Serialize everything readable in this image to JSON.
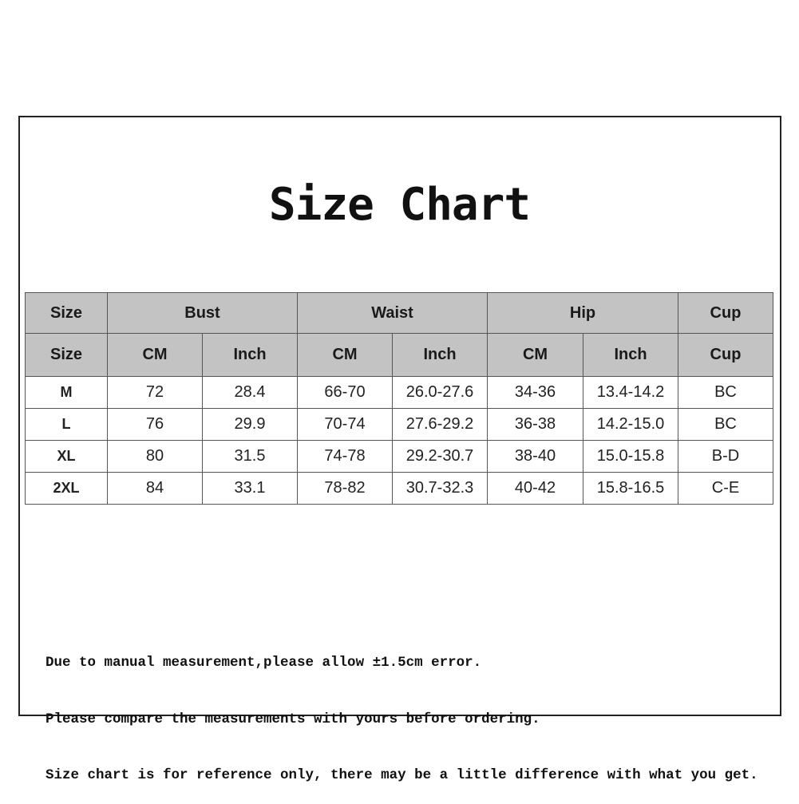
{
  "title": "Size Chart",
  "table": {
    "group_headers": [
      "Size",
      "Bust",
      "Waist",
      "Hip",
      "Cup"
    ],
    "sub_headers": [
      "Size",
      "CM",
      "Inch",
      "CM",
      "Inch",
      "CM",
      "Inch",
      "Cup"
    ],
    "rows": [
      [
        "M",
        "72",
        "28.4",
        "66-70",
        "26.0-27.6",
        "34-36",
        "13.4-14.2",
        "BC"
      ],
      [
        "L",
        "76",
        "29.9",
        "70-74",
        "27.6-29.2",
        "36-38",
        "14.2-15.0",
        "BC"
      ],
      [
        "XL",
        "80",
        "31.5",
        "74-78",
        "29.2-30.7",
        "38-40",
        "15.0-15.8",
        "B-D"
      ],
      [
        "2XL",
        "84",
        "33.1",
        "78-82",
        "30.7-32.3",
        "40-42",
        "15.8-16.5",
        "C-E"
      ]
    ]
  },
  "notes": [
    "Due to manual measurement,please allow ±1.5cm error.",
    "Please compare the measurements with yours before ordering.",
    "Size chart is for reference only, there may be a little difference with what you get."
  ],
  "colors": {
    "header_bg": "#c3c3c3",
    "border": "#555555"
  }
}
